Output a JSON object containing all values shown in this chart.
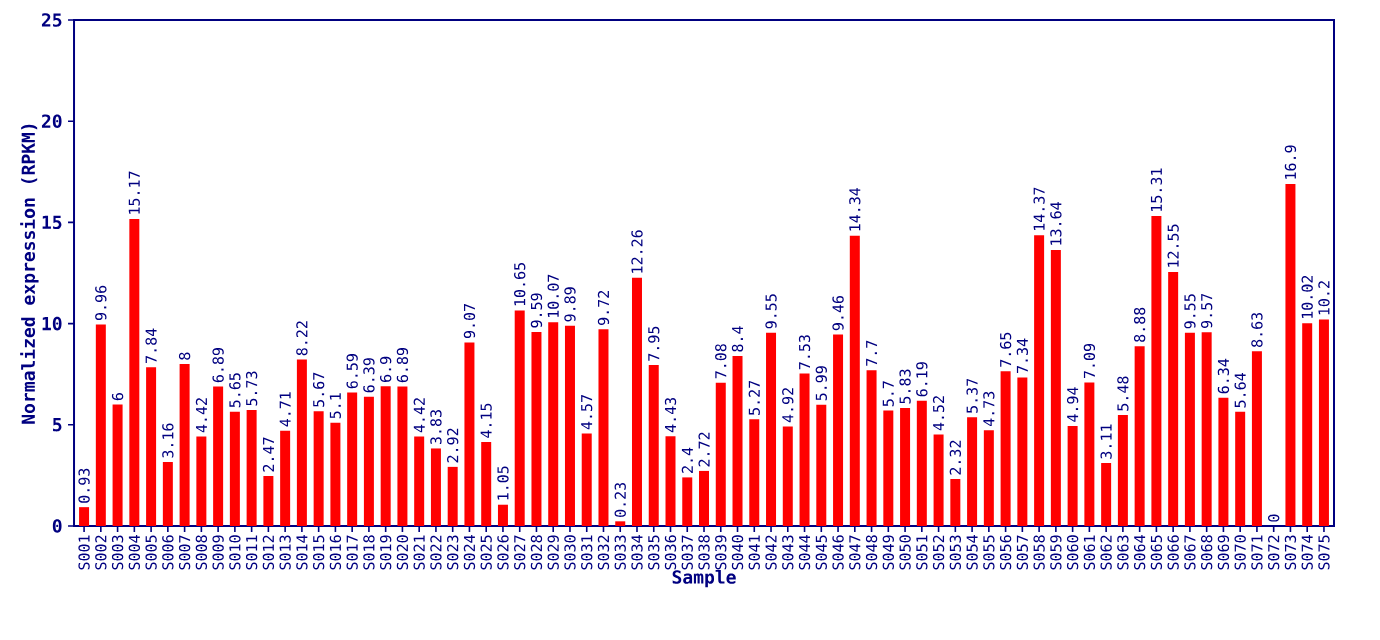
{
  "chart_data": {
    "type": "bar",
    "xlabel": "Sample",
    "ylabel": "Normalized expression (RPKM)",
    "categories": [
      "S001",
      "S002",
      "S003",
      "S004",
      "S005",
      "S006",
      "S007",
      "S008",
      "S009",
      "S010",
      "S011",
      "S012",
      "S013",
      "S014",
      "S015",
      "S016",
      "S017",
      "S018",
      "S019",
      "S020",
      "S021",
      "S022",
      "S023",
      "S024",
      "S025",
      "S026",
      "S027",
      "S028",
      "S029",
      "S030",
      "S031",
      "S032",
      "S033",
      "S034",
      "S035",
      "S036",
      "S037",
      "S038",
      "S039",
      "S040",
      "S041",
      "S042",
      "S043",
      "S044",
      "S045",
      "S046",
      "S047",
      "S048",
      "S049",
      "S050",
      "S051",
      "S052",
      "S053",
      "S054",
      "S055",
      "S056",
      "S057",
      "S058",
      "S059",
      "S060",
      "S061",
      "S062",
      "S063",
      "S064",
      "S065",
      "S066",
      "S067",
      "S068",
      "S069",
      "S070",
      "S071",
      "S072",
      "S073",
      "S074",
      "S075"
    ],
    "values": [
      0.93,
      9.96,
      6,
      15.17,
      7.84,
      3.16,
      8,
      4.42,
      6.89,
      5.65,
      5.73,
      2.47,
      4.71,
      8.22,
      5.67,
      5.1,
      6.59,
      6.39,
      6.9,
      6.89,
      4.42,
      3.83,
      2.92,
      9.07,
      4.15,
      1.05,
      10.65,
      9.59,
      10.07,
      9.89,
      4.57,
      9.72,
      0.23,
      12.26,
      7.95,
      4.43,
      2.4,
      2.72,
      7.08,
      8.4,
      5.27,
      9.55,
      4.92,
      7.53,
      5.99,
      9.46,
      14.34,
      7.7,
      5.7,
      5.83,
      6.19,
      4.52,
      2.32,
      5.37,
      4.73,
      7.65,
      7.34,
      14.37,
      13.64,
      4.94,
      7.09,
      3.11,
      5.48,
      8.88,
      15.31,
      12.55,
      9.55,
      9.57,
      6.34,
      5.64,
      8.63,
      0,
      16.9,
      10.02,
      10.2
    ],
    "value_labels": [
      "0.93",
      "9.96",
      "6",
      "15.17",
      "7.84",
      "3.16",
      "8",
      "4.42",
      "6.89",
      "5.65",
      "5.73",
      "2.47",
      "4.71",
      "8.22",
      "5.67",
      "5.1",
      "6.59",
      "6.39",
      "6.9",
      "6.89",
      "4.42",
      "3.83",
      "2.92",
      "9.07",
      "4.15",
      "1.05",
      "10.65",
      "9.59",
      "10.07",
      "9.89",
      "4.57",
      "9.72",
      "0.23",
      "12.26",
      "7.95",
      "4.43",
      "2.4",
      "2.72",
      "7.08",
      "8.4",
      "5.27",
      "9.55",
      "4.92",
      "7.53",
      "5.99",
      "9.46",
      "14.34",
      "7.7",
      "5.7",
      "5.83",
      "6.19",
      "4.52",
      "2.32",
      "5.37",
      "4.73",
      "7.65",
      "7.34",
      "14.37",
      "13.64",
      "4.94",
      "7.09",
      "3.11",
      "5.48",
      "8.88",
      "15.31",
      "12.55",
      "9.55",
      "9.57",
      "6.34",
      "5.64",
      "8.63",
      "0",
      "16.9",
      "10.02",
      "10.2"
    ],
    "color": "#ff0000",
    "ylim": [
      0,
      25
    ],
    "yticks": [
      0,
      5,
      10,
      15,
      20,
      25
    ],
    "grid": false
  }
}
